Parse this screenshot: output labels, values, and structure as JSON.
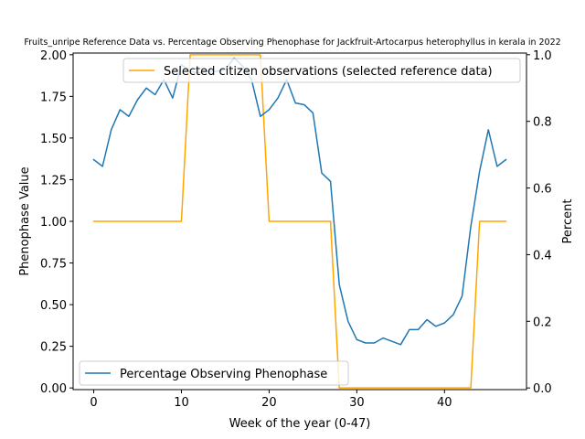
{
  "chart_data": {
    "type": "line",
    "title": "Fruits_unripe Reference Data vs. Percentage Observing Phenophase for Jackfruit-Artocarpus heterophyllus in kerala in 2022",
    "xlabel": "Week of the year (0-47)",
    "ylabel_left": "Phenophase Value",
    "ylabel_right": "Percent",
    "xlim": [
      -2.35,
      49.35
    ],
    "ylim_left": [
      -0.01,
      2.01
    ],
    "ylim_right": [
      -0.005,
      1.005
    ],
    "x_ticks": [
      0,
      10,
      20,
      30,
      40
    ],
    "x_tick_labels": [
      "0",
      "10",
      "20",
      "30",
      "40"
    ],
    "y_left_ticks": [
      0.0,
      0.25,
      0.5,
      0.75,
      1.0,
      1.25,
      1.5,
      1.75,
      2.0
    ],
    "y_left_tick_labels": [
      "0.00",
      "0.25",
      "0.50",
      "0.75",
      "1.00",
      "1.25",
      "1.50",
      "1.75",
      "2.00"
    ],
    "y_right_ticks": [
      0.0,
      0.2,
      0.4,
      0.6,
      0.8,
      1.0
    ],
    "y_right_tick_labels": [
      "0.0",
      "0.2",
      "0.4",
      "0.6",
      "0.8",
      "1.0"
    ],
    "grid": false,
    "series": [
      {
        "name": "Selected citizen observations (selected reference data)",
        "axis": "right",
        "color": "#ffa500",
        "legend_position": "top-right",
        "x": [
          0,
          1,
          2,
          3,
          4,
          5,
          6,
          7,
          8,
          9,
          10,
          11,
          12,
          13,
          14,
          15,
          16,
          17,
          18,
          19,
          20,
          21,
          22,
          23,
          24,
          25,
          26,
          27,
          28,
          29,
          30,
          31,
          32,
          33,
          34,
          35,
          36,
          37,
          38,
          39,
          40,
          41,
          42,
          43,
          44,
          45,
          46,
          47
        ],
        "y": [
          0.5,
          0.5,
          0.5,
          0.5,
          0.5,
          0.5,
          0.5,
          0.5,
          0.5,
          0.5,
          0.5,
          1.0,
          1.0,
          1.0,
          1.0,
          1.0,
          1.0,
          1.0,
          1.0,
          1.0,
          0.5,
          0.5,
          0.5,
          0.5,
          0.5,
          0.5,
          0.5,
          0.5,
          0.0,
          0.0,
          0.0,
          0.0,
          0.0,
          0.0,
          0.0,
          0.0,
          0.0,
          0.0,
          0.0,
          0.0,
          0.0,
          0.0,
          0.0,
          0.0,
          0.5,
          0.5,
          0.5,
          0.5
        ]
      },
      {
        "name": "Percentage Observing Phenophase",
        "axis": "left",
        "color": "#1f77b4",
        "legend_position": "bottom-left",
        "x": [
          0,
          1,
          2,
          3,
          4,
          5,
          6,
          7,
          8,
          9,
          10,
          11,
          12,
          13,
          14,
          15,
          16,
          17,
          18,
          19,
          20,
          21,
          22,
          23,
          24,
          25,
          26,
          27,
          28,
          29,
          30,
          31,
          32,
          33,
          34,
          35,
          36,
          37,
          38,
          39,
          40,
          41,
          42,
          43,
          44,
          45,
          46,
          47
        ],
        "y": [
          1.37,
          1.33,
          1.55,
          1.67,
          1.63,
          1.73,
          1.8,
          1.76,
          1.85,
          1.74,
          1.94,
          1.9,
          1.89,
          1.9,
          1.9,
          1.91,
          1.98,
          1.93,
          1.85,
          1.63,
          1.67,
          1.74,
          1.85,
          1.71,
          1.7,
          1.65,
          1.29,
          1.24,
          0.62,
          0.4,
          0.29,
          0.27,
          0.27,
          0.3,
          0.28,
          0.26,
          0.35,
          0.35,
          0.41,
          0.37,
          0.39,
          0.44,
          0.55,
          0.97,
          1.3,
          1.55,
          1.33,
          1.37
        ]
      }
    ]
  }
}
